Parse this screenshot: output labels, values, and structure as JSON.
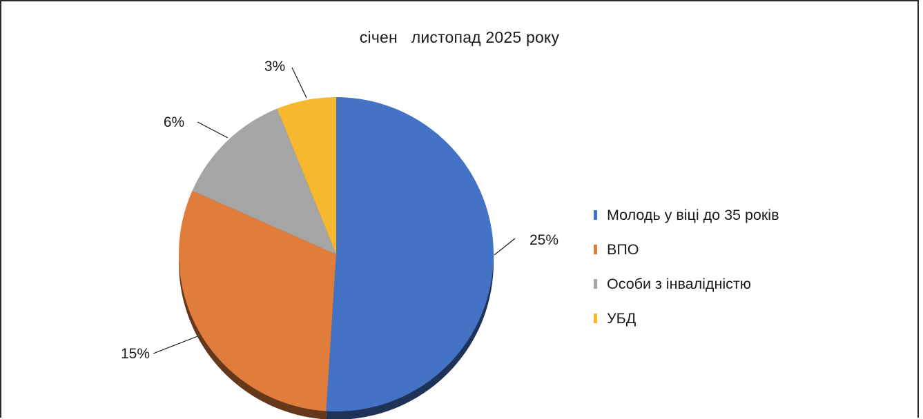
{
  "chart_data": {
    "type": "pie",
    "title": "січен   листопад 2025 року",
    "categories": [
      "Молодь у віці до 35 років",
      "ВПО",
      "Особи з інвалідністю",
      "УБД"
    ],
    "values": [
      25,
      15,
      6,
      3
    ],
    "data_labels": [
      "25%",
      "15%",
      "6%",
      "3%"
    ],
    "colors": [
      "#4472c4",
      "#e07d3c",
      "#a5a5a5",
      "#f5b82e"
    ],
    "legend_position": "right"
  }
}
